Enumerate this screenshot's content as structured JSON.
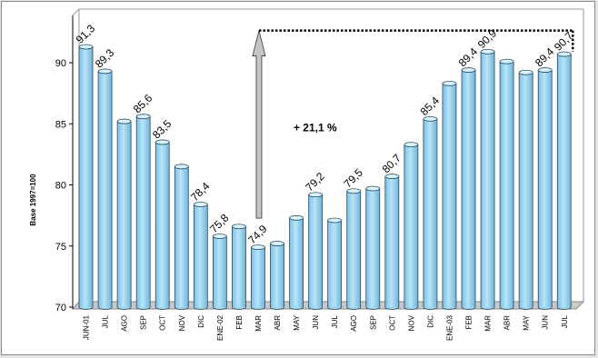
{
  "chart_data": {
    "type": "bar",
    "title": "",
    "xlabel": "",
    "ylabel": "Base 1997=100",
    "ylim": [
      70,
      93
    ],
    "yticks": [
      70,
      75,
      80,
      85,
      90
    ],
    "grid": false,
    "legend": "none",
    "colors": {
      "bar": "#9ed6f0",
      "bar_edge": "#2a4a5e",
      "floor": "#c9c9c9",
      "arrow_fill": "#c4c4c4"
    },
    "categories": [
      "JUN-01",
      "JUL",
      "AGO",
      "SEP",
      "OCT",
      "NOV",
      "DIC",
      "ENE-02",
      "FEB",
      "MAR",
      "ABR",
      "MAY",
      "JUN",
      "JUL",
      "AGO",
      "SEP",
      "OCT",
      "NOV",
      "DIC",
      "ENE-03",
      "FEB",
      "MAR",
      "ABR",
      "MAY",
      "JUN",
      "JUL"
    ],
    "values": [
      91.3,
      89.3,
      85.2,
      85.6,
      83.5,
      81.5,
      78.4,
      75.8,
      76.6,
      74.9,
      75.2,
      77.3,
      79.2,
      77.1,
      79.5,
      79.7,
      80.7,
      83.3,
      85.4,
      88.3,
      89.4,
      90.9,
      90.1,
      89.2,
      89.4,
      90.7
    ],
    "data_labels": [
      "91,3",
      "89,3",
      "",
      "85,6",
      "83,5",
      "",
      "78,4",
      "75,8",
      "",
      "74,9",
      "",
      "",
      "79,2",
      "",
      "79,5",
      "",
      "80,7",
      "",
      "85,4",
      "",
      "89,4",
      "90,9",
      "",
      "",
      "89,4",
      "90,7"
    ],
    "annotation": {
      "text": "+ 21,1 %",
      "from_category_index": 9,
      "to_category_index": 25
    }
  }
}
